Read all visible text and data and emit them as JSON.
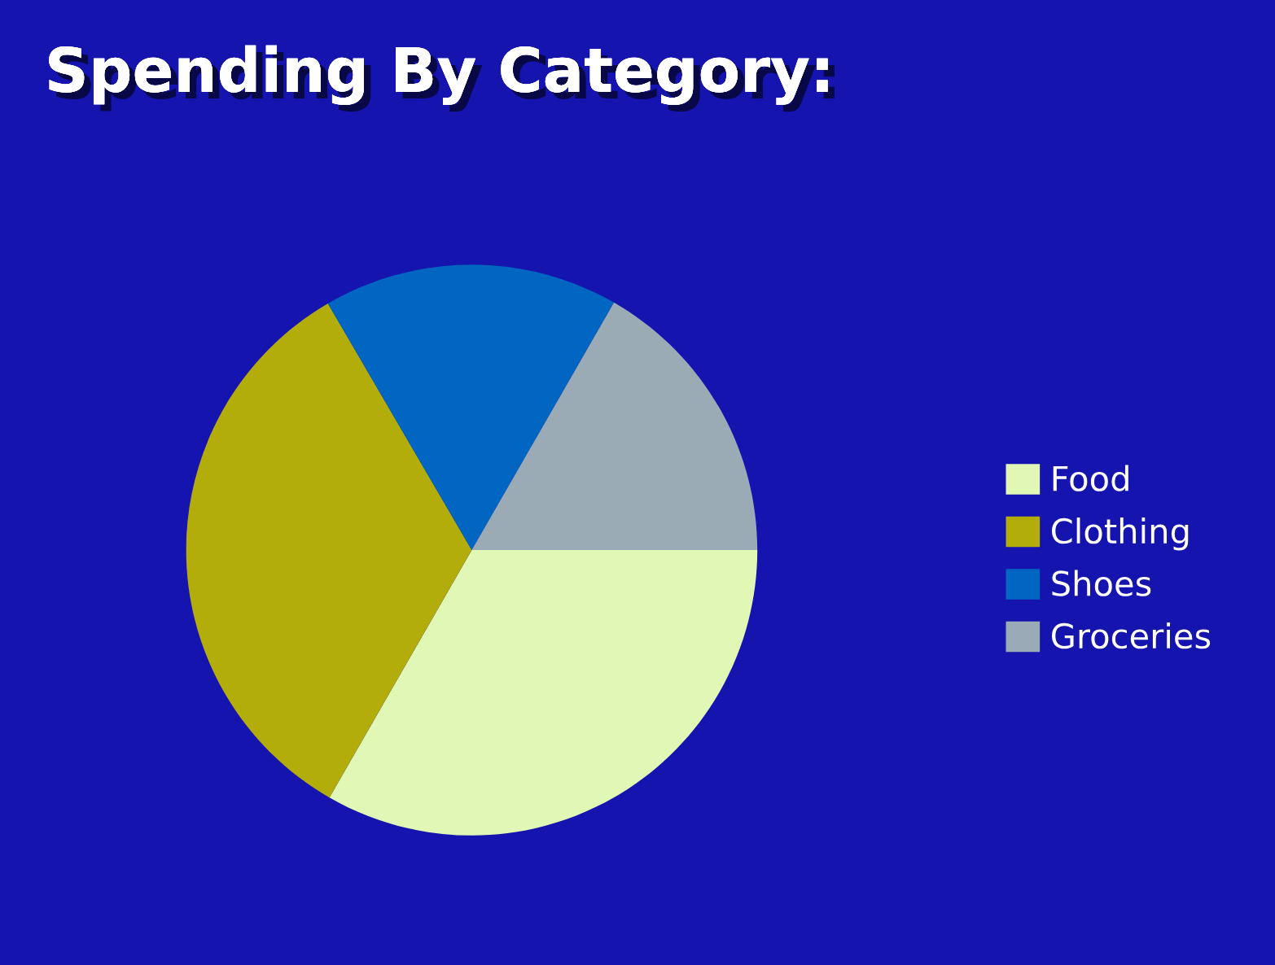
{
  "chart_data": {
    "type": "pie",
    "title": "Spending By Category:",
    "categories": [
      "Food",
      "Clothing",
      "Shoes",
      "Groceries"
    ],
    "values": [
      33.3,
      33.3,
      16.7,
      16.7
    ],
    "colors": [
      "#e1f7b6",
      "#b3ad0b",
      "#0066c2",
      "#9aabb6"
    ],
    "legend": "right"
  }
}
